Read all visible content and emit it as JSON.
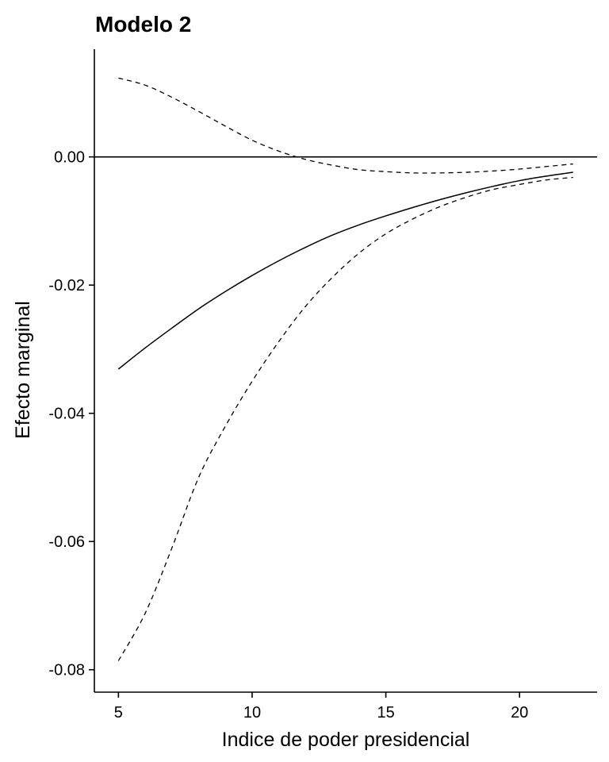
{
  "chart_data": {
    "type": "line",
    "title": "Modelo 2",
    "xlabel": "Indice de poder presidencial",
    "ylabel": "Efecto marginal",
    "xlim": [
      4.1,
      22.9
    ],
    "ylim": [
      -0.0835,
      0.0168
    ],
    "x_ticks": [
      5,
      10,
      15,
      20
    ],
    "x_tick_labels": [
      "5",
      "10",
      "15",
      "20"
    ],
    "y_ticks": [
      0.0,
      -0.02,
      -0.04,
      -0.06,
      -0.08
    ],
    "y_tick_labels": [
      "0.00",
      "-0.02",
      "-0.04",
      "-0.06",
      "-0.08"
    ],
    "reference_line_y": 0.0,
    "grid": false,
    "legend": "none",
    "series": [
      {
        "role": "estimate",
        "style": "solid",
        "x": [
          5,
          6,
          7,
          8,
          9,
          10,
          11,
          12,
          13,
          14,
          15,
          16,
          17,
          18,
          19,
          20,
          21,
          22
        ],
        "y": [
          -0.0331,
          -0.0298,
          -0.0267,
          -0.0237,
          -0.021,
          -0.0185,
          -0.0162,
          -0.0141,
          -0.0122,
          -0.0106,
          -0.0092,
          -0.0079,
          -0.0067,
          -0.0056,
          -0.0046,
          -0.0037,
          -0.003,
          -0.0024
        ]
      },
      {
        "role": "upper-bound",
        "style": "dashed",
        "x": [
          5,
          6,
          7,
          8,
          9,
          10,
          11,
          12,
          13,
          14,
          15,
          16,
          17,
          18,
          19,
          20,
          21,
          22
        ],
        "y": [
          0.0123,
          0.0112,
          0.0093,
          0.0071,
          0.0048,
          0.0026,
          0.0009,
          -0.0004,
          -0.0013,
          -0.002,
          -0.0023,
          -0.0025,
          -0.0025,
          -0.0024,
          -0.0022,
          -0.0019,
          -0.0015,
          -0.0011
        ]
      },
      {
        "role": "lower-bound",
        "style": "dashed",
        "x": [
          5,
          6,
          7,
          8,
          9,
          10,
          11,
          12,
          13,
          14,
          15,
          16,
          17,
          18,
          19,
          20,
          21,
          22
        ],
        "y": [
          -0.0786,
          -0.0712,
          -0.061,
          -0.05,
          -0.042,
          -0.035,
          -0.0288,
          -0.0233,
          -0.0188,
          -0.015,
          -0.012,
          -0.0097,
          -0.0078,
          -0.0063,
          -0.0051,
          -0.0043,
          -0.0036,
          -0.0032
        ]
      }
    ]
  }
}
